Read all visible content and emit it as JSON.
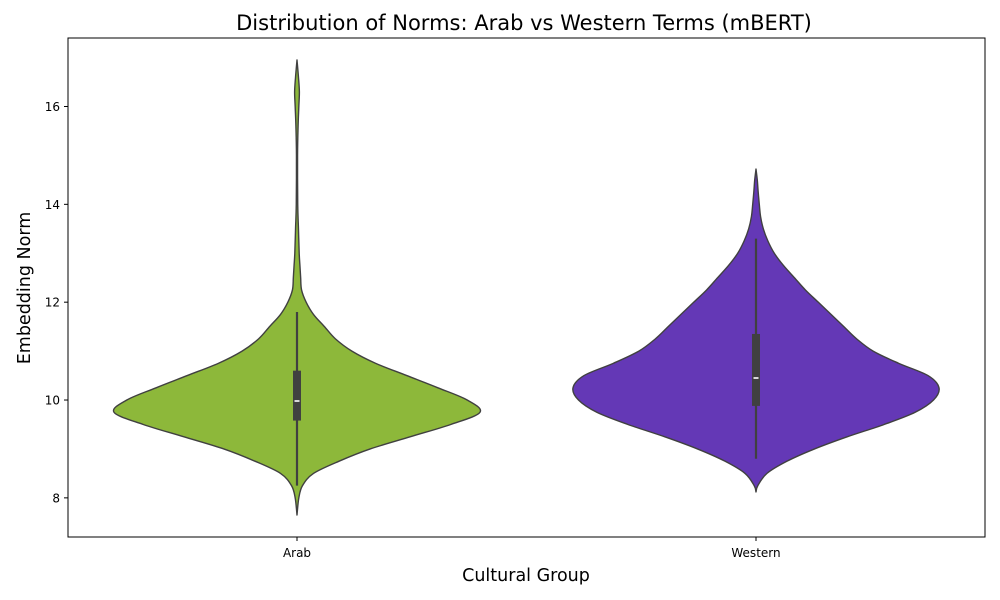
{
  "chart_data": {
    "type": "violin",
    "title": "Distribution of Norms: Arab vs Western Terms (mBERT)",
    "xlabel": "Cultural Group",
    "ylabel": "Embedding Norm",
    "categories": [
      "Arab",
      "Western"
    ],
    "ylim": [
      7.2,
      17.4
    ],
    "yticks": [
      8,
      10,
      12,
      14,
      16
    ],
    "grid": false,
    "violins": [
      {
        "category": "Arab",
        "color": "#8db83a",
        "range": [
          7.65,
          16.95
        ],
        "median": 9.98,
        "q1": 9.58,
        "q3": 10.6,
        "whisker_low": 8.25,
        "whisker_high": 11.8,
        "density_profile": [
          [
            7.65,
            0.0
          ],
          [
            8.0,
            0.01
          ],
          [
            8.25,
            0.03
          ],
          [
            8.5,
            0.09
          ],
          [
            8.75,
            0.23
          ],
          [
            9.0,
            0.4
          ],
          [
            9.25,
            0.62
          ],
          [
            9.5,
            0.84
          ],
          [
            9.75,
            1.0
          ],
          [
            10.0,
            0.93
          ],
          [
            10.25,
            0.77
          ],
          [
            10.5,
            0.6
          ],
          [
            10.75,
            0.43
          ],
          [
            11.0,
            0.3
          ],
          [
            11.25,
            0.21
          ],
          [
            11.5,
            0.15
          ],
          [
            11.75,
            0.09
          ],
          [
            12.0,
            0.05
          ],
          [
            12.25,
            0.025
          ],
          [
            12.5,
            0.02
          ],
          [
            12.75,
            0.016
          ],
          [
            13.0,
            0.012
          ],
          [
            13.5,
            0.008
          ],
          [
            14.0,
            0.004
          ],
          [
            15.0,
            0.003
          ],
          [
            15.6,
            0.006
          ],
          [
            16.0,
            0.01
          ],
          [
            16.3,
            0.013
          ],
          [
            16.6,
            0.008
          ],
          [
            16.95,
            0.0
          ]
        ]
      },
      {
        "category": "Western",
        "color": "#6438b6",
        "range": [
          8.12,
          14.72
        ],
        "median": 10.45,
        "q1": 9.88,
        "q3": 11.35,
        "whisker_low": 8.8,
        "whisker_high": 13.3,
        "density_profile": [
          [
            8.12,
            0.0
          ],
          [
            8.25,
            0.01
          ],
          [
            8.5,
            0.06
          ],
          [
            8.75,
            0.17
          ],
          [
            9.0,
            0.32
          ],
          [
            9.25,
            0.5
          ],
          [
            9.5,
            0.7
          ],
          [
            9.75,
            0.87
          ],
          [
            10.0,
            0.97
          ],
          [
            10.25,
            1.0
          ],
          [
            10.5,
            0.94
          ],
          [
            10.75,
            0.78
          ],
          [
            11.0,
            0.64
          ],
          [
            11.25,
            0.55
          ],
          [
            11.5,
            0.48
          ],
          [
            11.75,
            0.41
          ],
          [
            12.0,
            0.34
          ],
          [
            12.25,
            0.27
          ],
          [
            12.5,
            0.21
          ],
          [
            12.75,
            0.15
          ],
          [
            13.0,
            0.1
          ],
          [
            13.25,
            0.065
          ],
          [
            13.5,
            0.04
          ],
          [
            13.75,
            0.025
          ],
          [
            14.0,
            0.018
          ],
          [
            14.25,
            0.012
          ],
          [
            14.5,
            0.007
          ],
          [
            14.72,
            0.0
          ]
        ]
      }
    ]
  }
}
